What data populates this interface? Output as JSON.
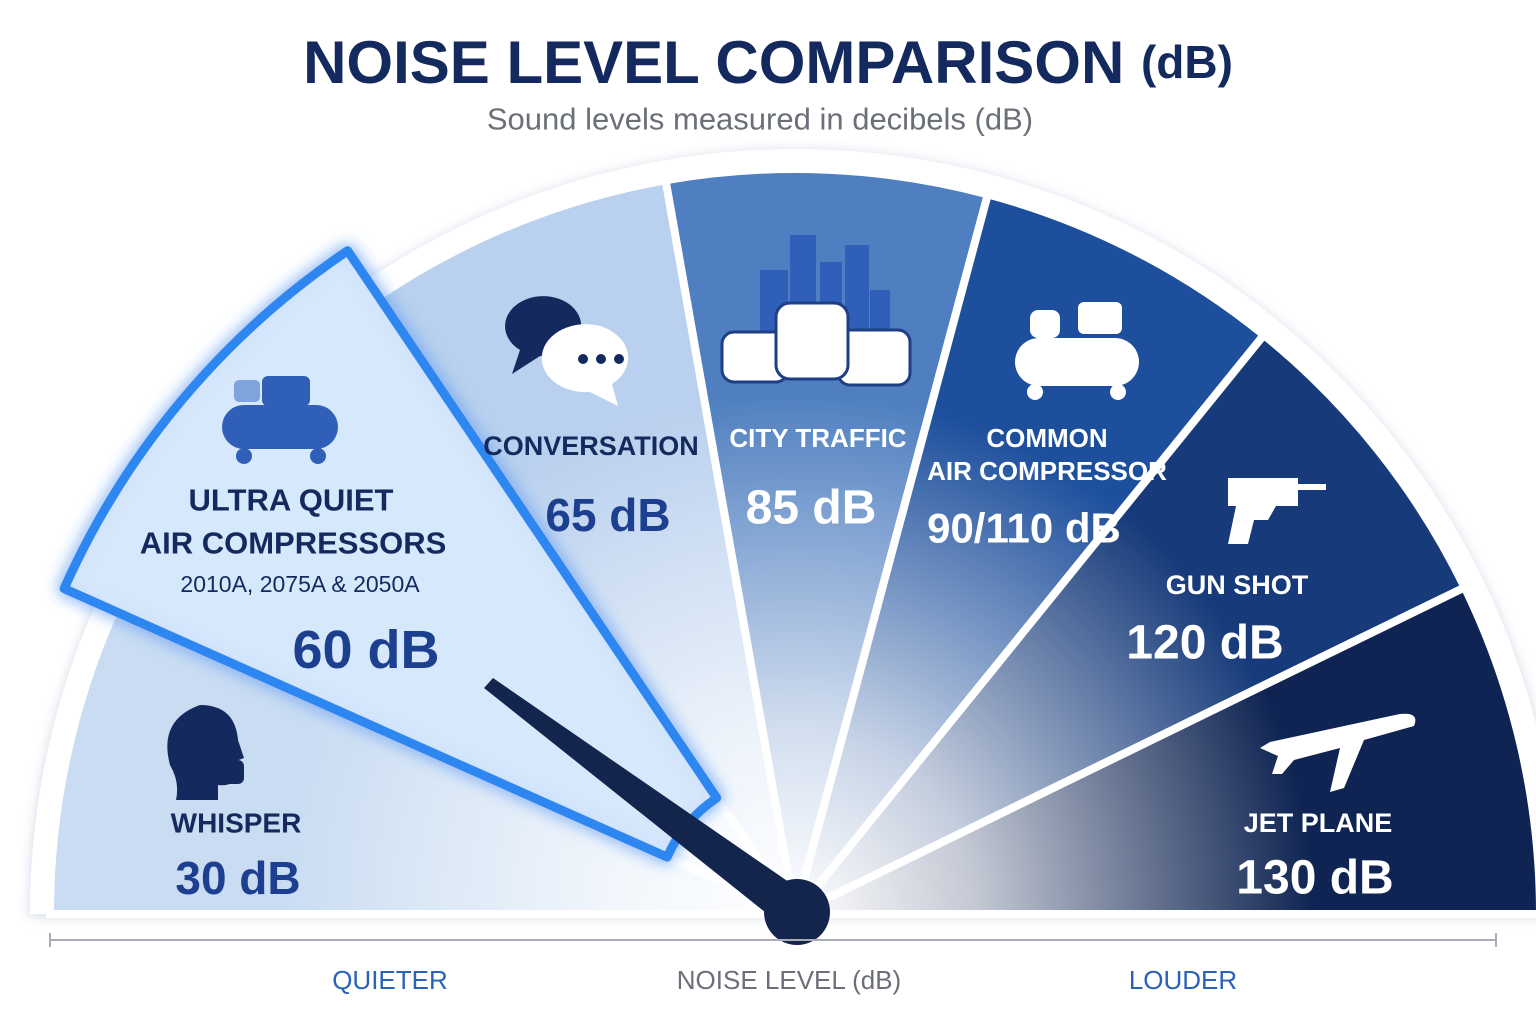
{
  "header": {
    "title": "NOISE LEVEL COMPARISON",
    "title_unit": "(dB)",
    "subtitle": "Sound levels measured in decibels (dB)"
  },
  "segments": [
    {
      "label_lines": [
        "WHISPER"
      ],
      "value": "30 dB"
    },
    {
      "label_lines": [
        "ULTRA QUIET",
        "AIR COMPRESSORS"
      ],
      "models": "2010A, 2075A & 2050A",
      "value": "60 dB"
    },
    {
      "label_lines": [
        "CONVERSATION"
      ],
      "value": "65 dB"
    },
    {
      "label_lines": [
        "CITY TRAFFIC"
      ],
      "value": "85 dB"
    },
    {
      "label_lines": [
        "COMMON",
        "AIR COMPRESSOR"
      ],
      "value": "90/110 dB"
    },
    {
      "label_lines": [
        "GUN SHOT"
      ],
      "value": "120 dB"
    },
    {
      "label_lines": [
        "JET PLANE"
      ],
      "value": "130 dB"
    }
  ],
  "axis": {
    "left": "QUIETER",
    "center": "NOISE LEVEL (dB)",
    "right": "LOUDER"
  }
}
